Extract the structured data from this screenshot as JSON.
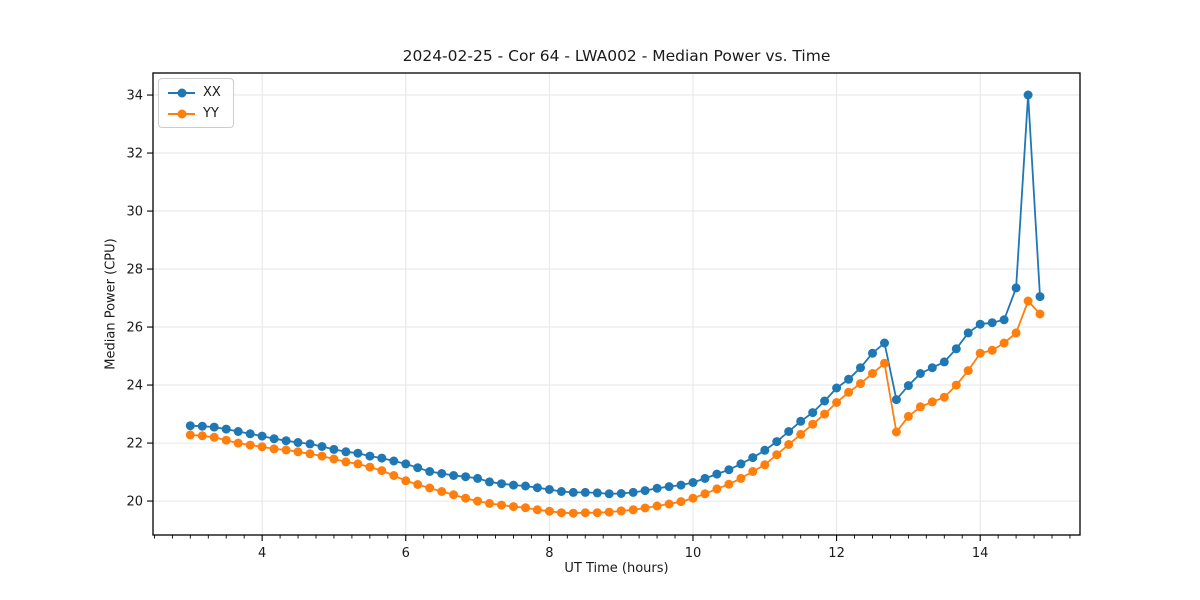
{
  "chart_data": {
    "type": "line",
    "title": "2024-02-25 - Cor 64 - LWA002 - Median Power vs. Time",
    "xlabel": "UT Time (hours)",
    "ylabel": "Median Power (CPU)",
    "legend_position": "upper-left",
    "grid": true,
    "grid_color": "#e6e6e6",
    "frame_color": "#000000",
    "xlim": [
      2.48,
      15.39
    ],
    "ylim": [
      18.83,
      34.76
    ],
    "x_ticks": [
      4,
      6,
      8,
      10,
      12,
      14
    ],
    "y_ticks": [
      20,
      22,
      24,
      26,
      28,
      30,
      32,
      34
    ],
    "x_minor_step": 0.25,
    "marker": "circle",
    "marker_radius": 4.5,
    "line_width": 1.8,
    "x": [
      3.0,
      3.167,
      3.333,
      3.5,
      3.667,
      3.833,
      4.0,
      4.167,
      4.333,
      4.5,
      4.667,
      4.833,
      5.0,
      5.167,
      5.333,
      5.5,
      5.667,
      5.833,
      6.0,
      6.167,
      6.333,
      6.5,
      6.667,
      6.833,
      7.0,
      7.167,
      7.333,
      7.5,
      7.667,
      7.833,
      8.0,
      8.167,
      8.333,
      8.5,
      8.667,
      8.833,
      9.0,
      9.167,
      9.333,
      9.5,
      9.667,
      9.833,
      10.0,
      10.167,
      10.333,
      10.5,
      10.667,
      10.833,
      11.0,
      11.167,
      11.333,
      11.5,
      11.667,
      11.833,
      12.0,
      12.167,
      12.333,
      12.5,
      12.667,
      12.833,
      13.0,
      13.167,
      13.333,
      13.5,
      13.667,
      13.833,
      14.0,
      14.167,
      14.333,
      14.5,
      14.667,
      14.833
    ],
    "series": [
      {
        "name": "XX",
        "color": "#1f77b4",
        "values": [
          22.6,
          22.58,
          22.55,
          22.48,
          22.4,
          22.32,
          22.24,
          22.15,
          22.08,
          22.02,
          21.97,
          21.88,
          21.78,
          21.7,
          21.65,
          21.55,
          21.48,
          21.38,
          21.28,
          21.15,
          21.02,
          20.95,
          20.88,
          20.84,
          20.78,
          20.66,
          20.6,
          20.55,
          20.52,
          20.46,
          20.4,
          20.33,
          20.3,
          20.3,
          20.28,
          20.25,
          20.26,
          20.3,
          20.36,
          20.44,
          20.5,
          20.55,
          20.64,
          20.78,
          20.93,
          21.08,
          21.28,
          21.5,
          21.75,
          22.05,
          22.4,
          22.75,
          23.05,
          23.45,
          23.9,
          24.2,
          24.6,
          25.1,
          25.45,
          23.5,
          23.98,
          24.4,
          24.6,
          24.8,
          25.25,
          25.8,
          26.1,
          26.15,
          26.25,
          27.35,
          34.0,
          27.05
        ]
      },
      {
        "name": "YY",
        "color": "#ff7f0e",
        "values": [
          22.28,
          22.25,
          22.2,
          22.1,
          22.0,
          21.93,
          21.87,
          21.8,
          21.76,
          21.7,
          21.63,
          21.55,
          21.45,
          21.35,
          21.28,
          21.17,
          21.05,
          20.88,
          20.7,
          20.57,
          20.45,
          20.33,
          20.22,
          20.1,
          20.0,
          19.92,
          19.86,
          19.81,
          19.77,
          19.7,
          19.65,
          19.6,
          19.58,
          19.6,
          19.6,
          19.62,
          19.66,
          19.7,
          19.76,
          19.83,
          19.9,
          19.98,
          20.1,
          20.25,
          20.42,
          20.58,
          20.78,
          21.02,
          21.25,
          21.6,
          21.95,
          22.3,
          22.65,
          23.0,
          23.4,
          23.75,
          24.05,
          24.4,
          24.75,
          22.38,
          22.92,
          23.25,
          23.42,
          23.58,
          24.0,
          24.5,
          25.1,
          25.2,
          25.45,
          25.8,
          26.9,
          26.45
        ]
      }
    ]
  }
}
